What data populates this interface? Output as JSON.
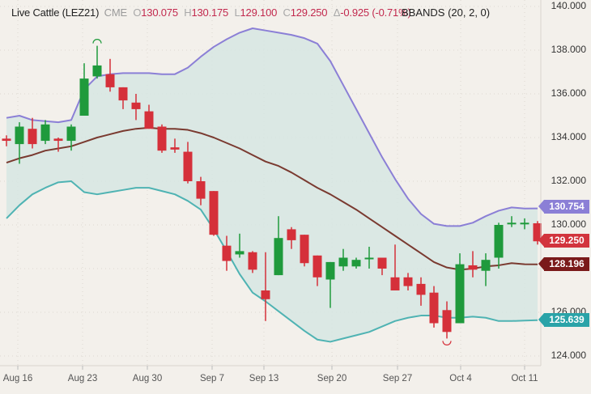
{
  "header": {
    "symbol": "Live Cattle (LEZ21)",
    "exchange": "CME",
    "open_label": "O",
    "open": "130.075",
    "high_label": "H",
    "high": "130.175",
    "low_label": "L",
    "low": "129.100",
    "close_label": "C",
    "close": "129.250",
    "change_label": "Δ",
    "change": "-0.925 (-0.71%)"
  },
  "indicator": {
    "label": "BBANDS (20, 2, 0)"
  },
  "y_axis": {
    "ticks": [
      "140.000",
      "138.000",
      "136.000",
      "134.000",
      "132.000",
      "130.000",
      "126.000",
      "124.000"
    ]
  },
  "x_axis": {
    "ticks": [
      "Aug 16",
      "Aug 23",
      "Aug 30",
      "Sep 7",
      "Sep 13",
      "Sep 20",
      "Sep 27",
      "Oct 4",
      "Oct 11"
    ]
  },
  "price_tags": {
    "upper": {
      "value": "130.754",
      "color": "#8b7fd6"
    },
    "last": {
      "value": "129.250",
      "color": "#d2343d"
    },
    "middle": {
      "value": "128.196",
      "color": "#7a1a1a"
    },
    "lower": {
      "value": "125.639",
      "color": "#2aa3a8"
    }
  },
  "colors": {
    "up": "#1f9a3c",
    "down": "#d5303a",
    "upper_band": "#8b7fd6",
    "middle_band": "#7a3a30",
    "lower_band": "#4fb3b3",
    "band_fill": "#d6e6e3",
    "background": "#f3f0eb"
  },
  "chart_data": {
    "type": "candlestick",
    "title": "Live Cattle (LEZ21) CME",
    "indicator": "BBANDS (20, 2, 0)",
    "ylim": [
      124,
      140
    ],
    "x_ticks": [
      "Aug 16",
      "Aug 23",
      "Aug 30",
      "Sep 7",
      "Sep 13",
      "Sep 20",
      "Sep 27",
      "Oct 4",
      "Oct 11"
    ],
    "candles": [
      {
        "o": 133.95,
        "h": 134.1,
        "l": 133.6,
        "c": 133.85
      },
      {
        "o": 133.7,
        "h": 134.7,
        "l": 132.8,
        "c": 134.5
      },
      {
        "o": 134.4,
        "h": 134.9,
        "l": 133.5,
        "c": 133.7
      },
      {
        "o": 133.85,
        "h": 134.8,
        "l": 133.7,
        "c": 134.6
      },
      {
        "o": 133.95,
        "h": 134.0,
        "l": 133.35,
        "c": 133.85
      },
      {
        "o": 133.85,
        "h": 134.6,
        "l": 133.4,
        "c": 134.5
      },
      {
        "o": 135.0,
        "h": 137.4,
        "l": 135.0,
        "c": 136.7
      },
      {
        "o": 136.8,
        "h": 138.2,
        "l": 136.7,
        "c": 137.3
      },
      {
        "o": 136.9,
        "h": 137.6,
        "l": 136.1,
        "c": 136.3
      },
      {
        "o": 136.3,
        "h": 136.3,
        "l": 135.3,
        "c": 135.7
      },
      {
        "o": 135.6,
        "h": 136.0,
        "l": 134.8,
        "c": 135.3
      },
      {
        "o": 135.2,
        "h": 135.5,
        "l": 134.4,
        "c": 134.4
      },
      {
        "o": 134.5,
        "h": 134.6,
        "l": 133.3,
        "c": 133.4
      },
      {
        "o": 133.55,
        "h": 133.95,
        "l": 133.3,
        "c": 133.45
      },
      {
        "o": 133.35,
        "h": 133.8,
        "l": 131.9,
        "c": 132.0
      },
      {
        "o": 132.0,
        "h": 132.2,
        "l": 130.9,
        "c": 131.2
      },
      {
        "o": 131.55,
        "h": 131.55,
        "l": 129.5,
        "c": 129.55
      },
      {
        "o": 129.05,
        "h": 129.5,
        "l": 127.9,
        "c": 128.35
      },
      {
        "o": 128.65,
        "h": 129.6,
        "l": 128.5,
        "c": 128.8
      },
      {
        "o": 128.75,
        "h": 128.8,
        "l": 127.8,
        "c": 127.95
      },
      {
        "o": 127.0,
        "h": 128.75,
        "l": 125.6,
        "c": 126.6
      },
      {
        "o": 127.7,
        "h": 130.4,
        "l": 127.7,
        "c": 129.4
      },
      {
        "o": 129.8,
        "h": 129.9,
        "l": 128.9,
        "c": 129.3
      },
      {
        "o": 129.55,
        "h": 129.55,
        "l": 128.1,
        "c": 128.25
      },
      {
        "o": 128.6,
        "h": 128.6,
        "l": 127.2,
        "c": 127.6
      },
      {
        "o": 127.5,
        "h": 128.3,
        "l": 126.2,
        "c": 128.3
      },
      {
        "o": 128.1,
        "h": 128.9,
        "l": 127.9,
        "c": 128.5
      },
      {
        "o": 128.1,
        "h": 128.5,
        "l": 128.0,
        "c": 128.4
      },
      {
        "o": 128.5,
        "h": 129.0,
        "l": 128.0,
        "c": 128.5
      },
      {
        "o": 128.5,
        "h": 128.5,
        "l": 127.7,
        "c": 128.0
      },
      {
        "o": 127.6,
        "h": 129.1,
        "l": 127.3,
        "c": 127.0
      },
      {
        "o": 127.6,
        "h": 127.8,
        "l": 127.0,
        "c": 127.2
      },
      {
        "o": 127.3,
        "h": 127.6,
        "l": 126.3,
        "c": 126.8
      },
      {
        "o": 126.9,
        "h": 127.2,
        "l": 125.3,
        "c": 125.5
      },
      {
        "o": 126.1,
        "h": 126.5,
        "l": 124.8,
        "c": 125.1
      },
      {
        "o": 125.5,
        "h": 128.7,
        "l": 125.5,
        "c": 128.2
      },
      {
        "o": 128.15,
        "h": 128.8,
        "l": 127.6,
        "c": 127.95
      },
      {
        "o": 127.9,
        "h": 128.7,
        "l": 127.2,
        "c": 128.4
      },
      {
        "o": 128.5,
        "h": 130.1,
        "l": 128.0,
        "c": 130.0
      },
      {
        "o": 130.1,
        "h": 130.4,
        "l": 129.9,
        "c": 130.1
      },
      {
        "o": 130.1,
        "h": 130.3,
        "l": 129.8,
        "c": 130.1
      },
      {
        "o": 130.075,
        "h": 130.175,
        "l": 129.1,
        "c": 129.25
      }
    ],
    "upper_band": [
      134.9,
      135.0,
      134.8,
      134.75,
      134.7,
      134.8,
      136.2,
      136.8,
      136.9,
      136.95,
      136.95,
      136.95,
      136.9,
      136.9,
      137.2,
      137.7,
      138.15,
      138.5,
      138.8,
      139.0,
      138.9,
      138.8,
      138.7,
      138.55,
      138.3,
      137.5,
      136.4,
      135.3,
      134.2,
      133.1,
      132.1,
      131.2,
      130.5,
      130.05,
      129.95,
      129.95,
      130.1,
      130.4,
      130.65,
      130.8,
      130.75,
      130.754
    ],
    "middle_band": [
      132.85,
      133.05,
      133.2,
      133.4,
      133.5,
      133.6,
      133.8,
      134.0,
      134.15,
      134.3,
      134.4,
      134.45,
      134.4,
      134.4,
      134.35,
      134.2,
      134.0,
      133.75,
      133.5,
      133.2,
      132.9,
      132.7,
      132.4,
      132.05,
      131.7,
      131.4,
      131.05,
      130.7,
      130.3,
      129.9,
      129.5,
      129.1,
      128.7,
      128.3,
      128.05,
      127.95,
      128.0,
      128.1,
      128.15,
      128.25,
      128.2,
      128.196
    ],
    "lower_band": [
      130.3,
      130.9,
      131.4,
      131.7,
      131.95,
      132.0,
      131.5,
      131.4,
      131.5,
      131.6,
      131.7,
      131.7,
      131.55,
      131.4,
      131.1,
      130.7,
      129.8,
      128.8,
      127.75,
      126.9,
      126.5,
      126.05,
      125.6,
      125.15,
      124.75,
      124.65,
      124.8,
      124.95,
      125.1,
      125.35,
      125.6,
      125.75,
      125.85,
      125.85,
      125.75,
      125.75,
      125.8,
      125.75,
      125.6,
      125.6,
      125.62,
      125.639
    ],
    "last_price_tags": {
      "upper": 130.754,
      "last": 129.25,
      "middle": 128.196,
      "lower": 125.639
    }
  }
}
